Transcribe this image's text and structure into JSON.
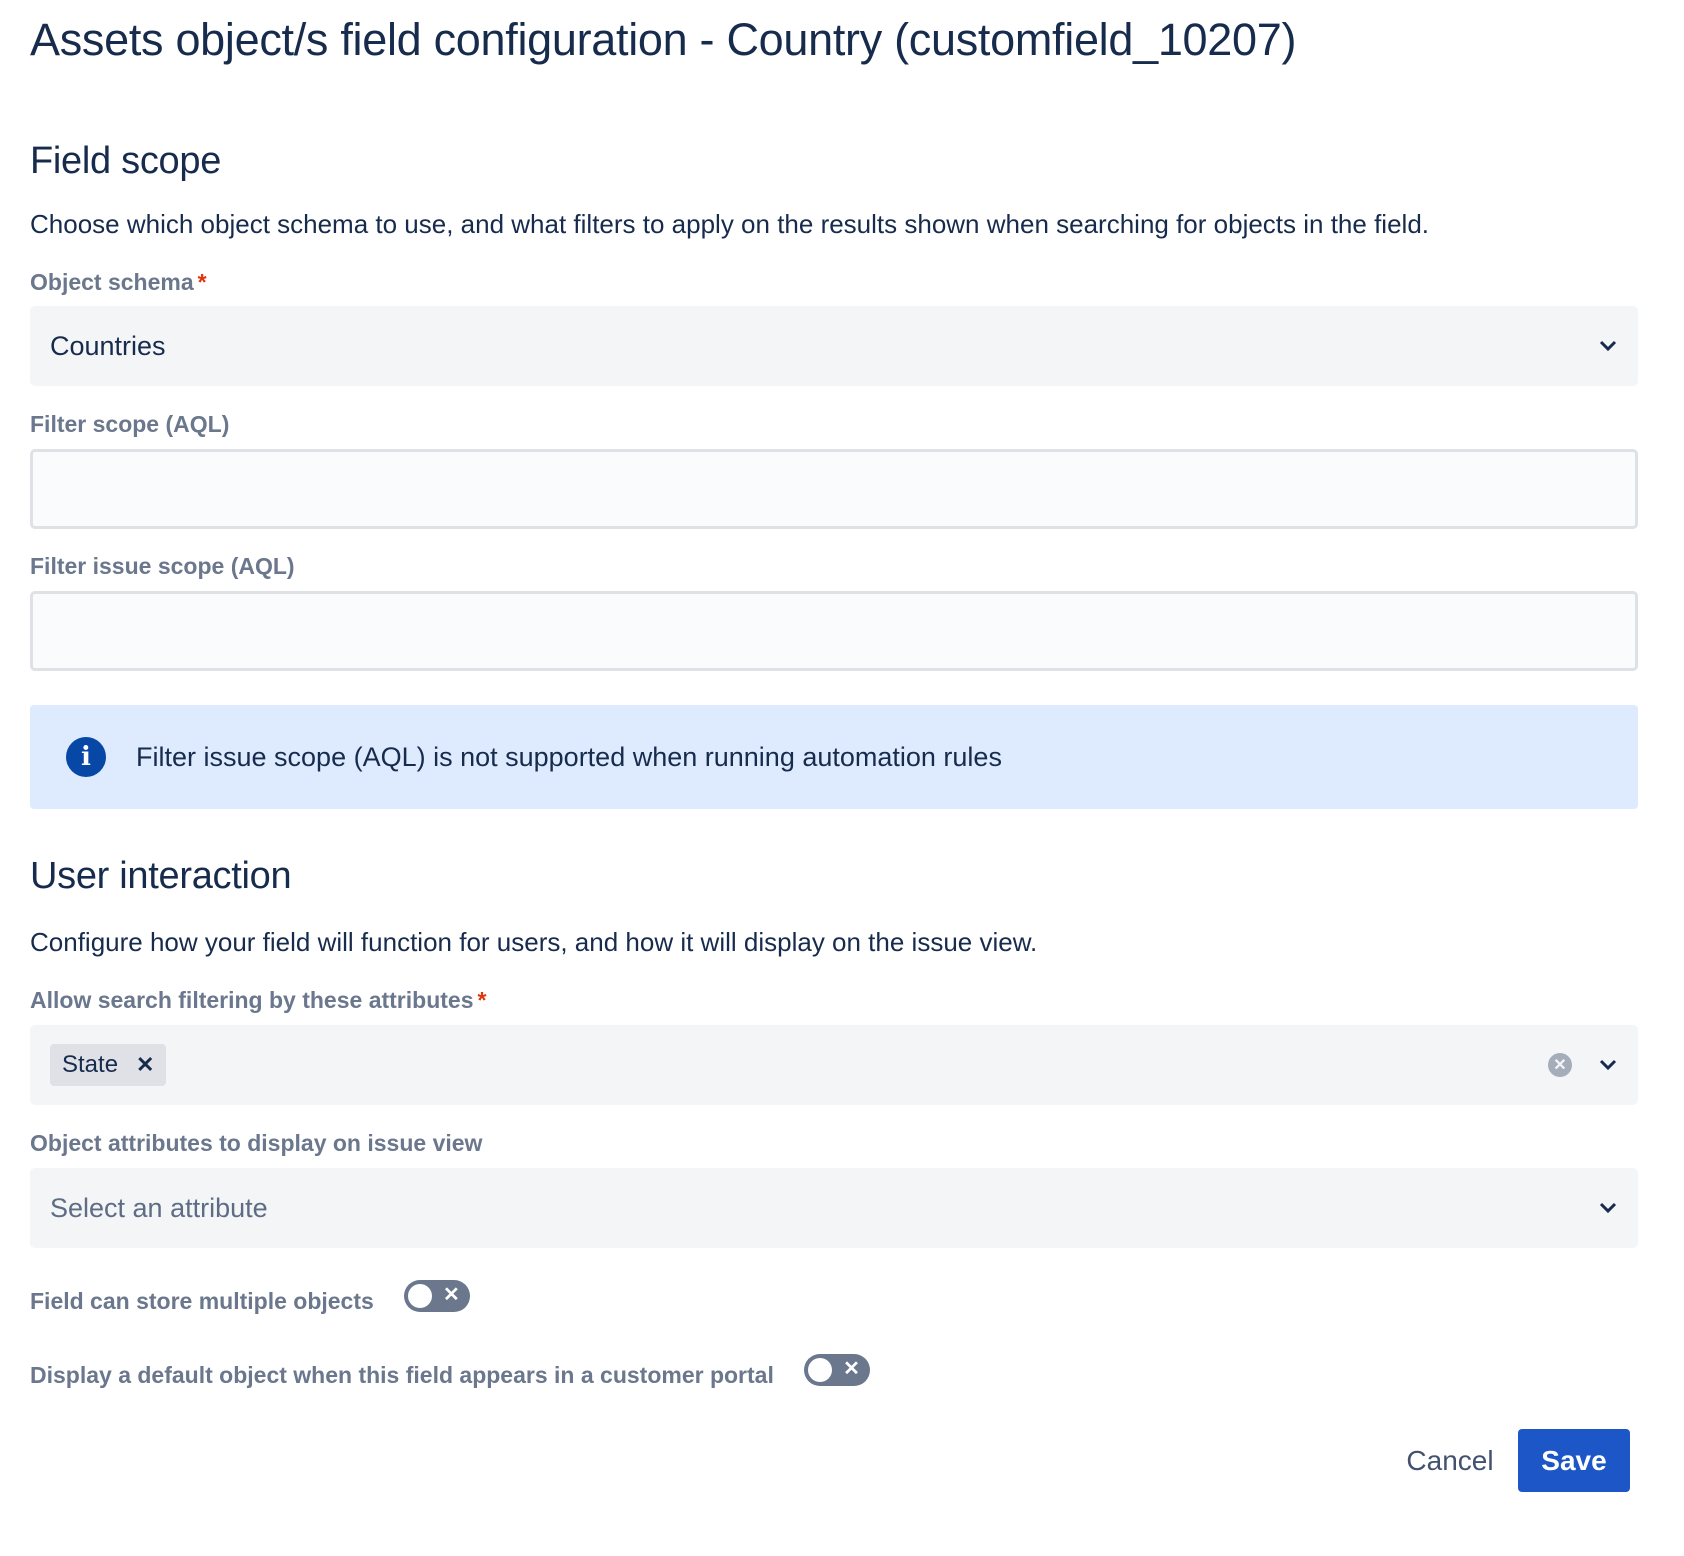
{
  "title": "Assets object/s field configuration - Country (customfield_10207)",
  "field_scope": {
    "heading": "Field scope",
    "description": "Choose which object schema to use, and what filters to apply on the results shown when searching for objects in the field.",
    "object_schema": {
      "label": "Object schema",
      "required": "*",
      "value": "Countries"
    },
    "filter_scope": {
      "label": "Filter scope (AQL)",
      "value": ""
    },
    "filter_issue_scope": {
      "label": "Filter issue scope (AQL)",
      "value": ""
    },
    "info": {
      "icon": "info-icon",
      "text": "Filter issue scope (AQL) is not supported when running automation rules"
    }
  },
  "user_interaction": {
    "heading": "User interaction",
    "description": "Configure how your field will function for users, and how it will display on the issue view.",
    "search_attributes": {
      "label": "Allow search filtering by these attributes",
      "required": "*",
      "chips": [
        "State"
      ]
    },
    "display_attributes": {
      "label": "Object attributes to display on issue view",
      "placeholder": "Select an attribute"
    },
    "multiple_objects": {
      "label": "Field can store multiple objects",
      "enabled": false
    },
    "default_object": {
      "label": "Display a default object when this field appears in a customer portal",
      "enabled": false
    }
  },
  "actions": {
    "cancel": "Cancel",
    "save": "Save"
  },
  "colors": {
    "primary": "#1D57C7",
    "info_bg": "#DEEBFF",
    "text": "#172B4D",
    "label": "#6B778C"
  }
}
